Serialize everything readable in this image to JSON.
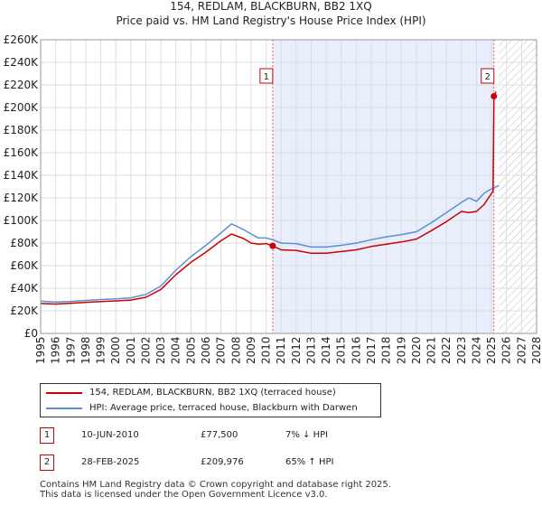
{
  "chart_data": {
    "type": "line",
    "title": "154, REDLAM, BLACKBURN, BB2 1XQ",
    "subtitle": "Price paid vs. HM Land Registry's House Price Index (HPI)",
    "xlabel": "",
    "ylabel": "",
    "xlim": [
      1995,
      2028
    ],
    "ylim": [
      0,
      260000
    ],
    "x_ticks": [
      1995,
      1996,
      1997,
      1998,
      1999,
      2000,
      2001,
      2002,
      2003,
      2004,
      2005,
      2006,
      2007,
      2008,
      2009,
      2010,
      2011,
      2012,
      2013,
      2014,
      2015,
      2016,
      2017,
      2018,
      2019,
      2020,
      2021,
      2022,
      2023,
      2024,
      2025,
      2026,
      2027,
      2028
    ],
    "y_ticks": [
      {
        "value": 0,
        "label": "£0"
      },
      {
        "value": 20000,
        "label": "£20K"
      },
      {
        "value": 40000,
        "label": "£40K"
      },
      {
        "value": 60000,
        "label": "£60K"
      },
      {
        "value": 80000,
        "label": "£80K"
      },
      {
        "value": 100000,
        "label": "£100K"
      },
      {
        "value": 120000,
        "label": "£120K"
      },
      {
        "value": 140000,
        "label": "£140K"
      },
      {
        "value": 160000,
        "label": "£160K"
      },
      {
        "value": 180000,
        "label": "£180K"
      },
      {
        "value": 200000,
        "label": "£200K"
      },
      {
        "value": 220000,
        "label": "£220K"
      },
      {
        "value": 240000,
        "label": "£240K"
      },
      {
        "value": 260000,
        "label": "£260K"
      }
    ],
    "grid": true,
    "shaded_region": {
      "from": 2010.44,
      "to": 2025.16
    },
    "future_hatch_from": 2025.5,
    "series": [
      {
        "name": "154, REDLAM, BLACKBURN, BB2 1XQ (terraced house)",
        "color": "#cc0000",
        "x": [
          1995,
          1996,
          1997,
          1998,
          1999,
          2000,
          2001,
          2002,
          2003,
          2004,
          2005,
          2006,
          2007,
          2007.7,
          2008.5,
          2009,
          2009.5,
          2010,
          2010.44,
          2011,
          2012,
          2013,
          2014,
          2015,
          2016,
          2017,
          2018,
          2019,
          2020,
          2021,
          2022,
          2023,
          2023.5,
          2024,
          2024.5,
          2025.1,
          2025.16,
          2025.3
        ],
        "y": [
          26500,
          26000,
          26700,
          27500,
          28200,
          28800,
          29500,
          32000,
          39000,
          52000,
          63000,
          72000,
          82000,
          88000,
          84000,
          80000,
          79000,
          79500,
          77500,
          74000,
          73500,
          71000,
          71000,
          72500,
          74000,
          77000,
          79000,
          81000,
          83500,
          91000,
          99000,
          108000,
          107000,
          108000,
          114000,
          126000,
          209976,
          214000
        ]
      },
      {
        "name": "HPI: Average price, terraced house, Blackburn with Darwen",
        "color": "#5b8fd6",
        "x": [
          1995,
          1996,
          1997,
          1998,
          1999,
          2000,
          2001,
          2002,
          2003,
          2004,
          2005,
          2006,
          2007,
          2007.7,
          2008.5,
          2009,
          2009.5,
          2010,
          2010.44,
          2011,
          2012,
          2013,
          2014,
          2015,
          2016,
          2017,
          2018,
          2019,
          2020,
          2021,
          2022,
          2023,
          2023.5,
          2024,
          2024.5,
          2025,
          2025.5
        ],
        "y": [
          28500,
          27800,
          28300,
          29200,
          30000,
          30600,
          31500,
          34500,
          42000,
          56000,
          68000,
          78000,
          89000,
          97000,
          92000,
          88000,
          84500,
          84500,
          83000,
          80000,
          79500,
          76500,
          76500,
          78000,
          80000,
          83000,
          85500,
          87500,
          90000,
          98000,
          107000,
          116000,
          120000,
          117000,
          124000,
          128000,
          131000
        ]
      }
    ],
    "sales": [
      {
        "n": 1,
        "x": 2010.44,
        "y": 77500,
        "label": "1"
      },
      {
        "n": 2,
        "x": 2025.16,
        "y": 209976,
        "label": "2"
      }
    ]
  },
  "legend": {
    "property": "154, REDLAM, BLACKBURN, BB2 1XQ (terraced house)",
    "hpi": "HPI: Average price, terraced house, Blackburn with Darwen"
  },
  "sales_table": [
    {
      "n": "1",
      "date": "10-JUN-2010",
      "price": "£77,500",
      "hpi": "7% ↓ HPI"
    },
    {
      "n": "2",
      "date": "28-FEB-2025",
      "price": "£209,976",
      "hpi": "65% ↑ HPI"
    }
  ],
  "footer": {
    "line1": "Contains HM Land Registry data © Crown copyright and database right 2025.",
    "line2": "This data is licensed under the Open Government Licence v3.0."
  },
  "colors": {
    "property": "#cc0000",
    "hpi": "#5b8fd6",
    "shade": "#e8eefb",
    "grid": "#dddddd"
  }
}
